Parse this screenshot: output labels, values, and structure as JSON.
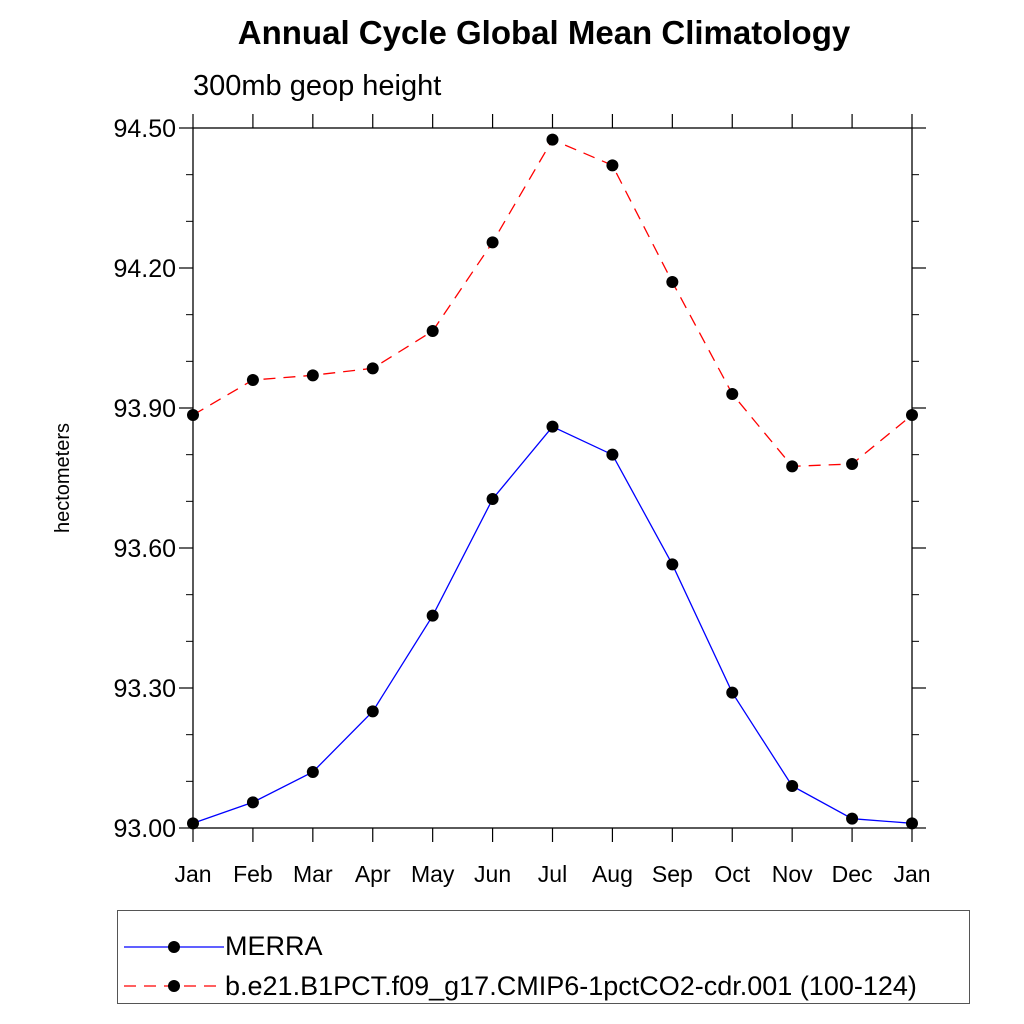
{
  "chart_data": {
    "type": "line",
    "title": "Annual Cycle Global Mean Climatology",
    "subtitle": "300mb geop height",
    "ylabel": "hectometers",
    "xlabel": "",
    "categories": [
      "Jan",
      "Feb",
      "Mar",
      "Apr",
      "May",
      "Jun",
      "Jul",
      "Aug",
      "Sep",
      "Oct",
      "Nov",
      "Dec",
      "Jan"
    ],
    "ylim": [
      93.0,
      94.5
    ],
    "yticks": [
      "93.00",
      "93.30",
      "93.60",
      "93.90",
      "94.20",
      "94.50"
    ],
    "series": [
      {
        "name": "MERRA",
        "color": "#0000ff",
        "dash": "solid",
        "values": [
          93.01,
          93.055,
          93.12,
          93.25,
          93.455,
          93.705,
          93.86,
          93.8,
          93.565,
          93.29,
          93.09,
          93.02,
          93.01
        ]
      },
      {
        "name": "b.e21.B1PCT.f09_g17.CMIP6-1pctCO2-cdr.001 (100-124)",
        "color": "#ff0000",
        "dash": "dashed",
        "values": [
          93.885,
          93.96,
          93.97,
          93.985,
          94.065,
          94.255,
          94.475,
          94.42,
          94.17,
          93.93,
          93.775,
          93.78,
          93.885
        ]
      }
    ]
  }
}
